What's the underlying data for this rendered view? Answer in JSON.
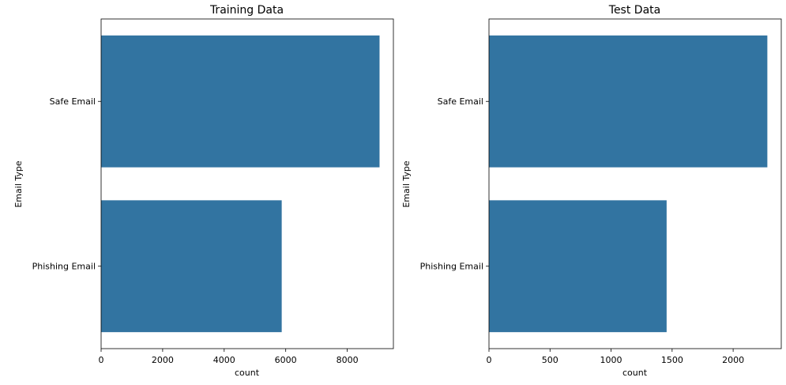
{
  "chart_data": [
    {
      "type": "bar",
      "orientation": "horizontal",
      "title": "Training Data",
      "categories": [
        "Safe Email",
        "Phishing Email"
      ],
      "values": [
        9050,
        5870
      ],
      "xlabel": "count",
      "ylabel": "Email Type",
      "xlim": [
        0,
        9500
      ],
      "xticks": [
        0,
        2000,
        4000,
        6000,
        8000
      ],
      "xtick_labels": [
        "0",
        "2000",
        "4000",
        "6000",
        "8000"
      ],
      "bar_color": "#3274a1",
      "grid": false
    },
    {
      "type": "bar",
      "orientation": "horizontal",
      "title": "Test Data",
      "categories": [
        "Safe Email",
        "Phishing Email"
      ],
      "values": [
        2280,
        1455
      ],
      "xlabel": "count",
      "ylabel": "Email Type",
      "xlim": [
        0,
        2394
      ],
      "xticks": [
        0,
        500,
        1000,
        1500,
        2000
      ],
      "xtick_labels": [
        "0",
        "500",
        "1000",
        "1500",
        "2000"
      ],
      "bar_color": "#3274a1",
      "grid": false
    }
  ]
}
